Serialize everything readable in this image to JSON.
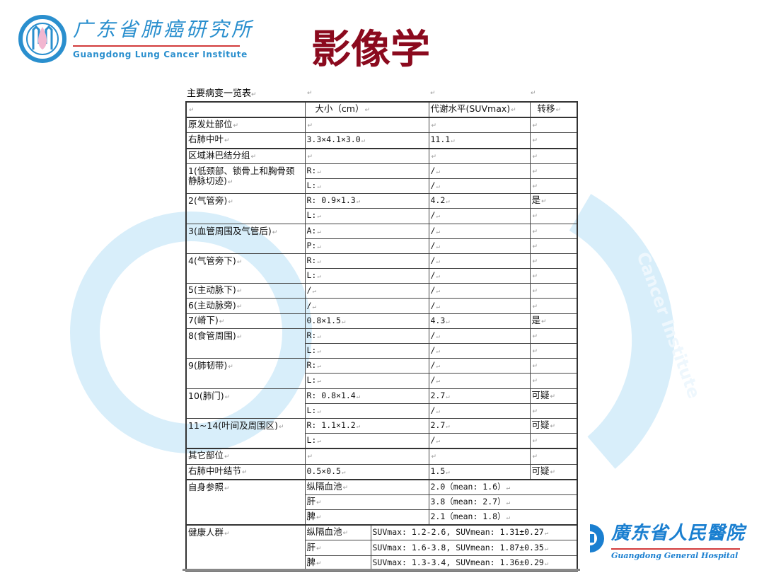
{
  "colors": {
    "title": "#8b0a1e",
    "logo_blue": "#2a8fce",
    "logo_red": "#d23b3b",
    "watermark": "#d8eefa"
  },
  "header": {
    "logo_left": {
      "cn": "广东省肺癌研究所",
      "en": "Guangdong Lung Cancer Institute"
    },
    "title": "影像学"
  },
  "watermark": {
    "text": "Cancer Institute"
  },
  "table": {
    "caption": "主要病变一览表",
    "columns": [
      "",
      "大小（cm）",
      "代谢水平(SUVmax)",
      "转移"
    ],
    "rows": [
      {
        "type": "normal",
        "cells": [
          "原发灶部位",
          "",
          "",
          ""
        ],
        "thick": true
      },
      {
        "type": "normal",
        "cells": [
          "右肺中叶",
          "3.3×4.1×3.0",
          "11.1",
          ""
        ]
      },
      {
        "type": "normal",
        "cells": [
          "区域淋巴结分组",
          "",
          "",
          ""
        ],
        "thick": true
      },
      {
        "type": "normal",
        "cells": [
          "1(低颈部、锁骨上和胸骨颈静脉切迹)",
          "R:",
          "/",
          ""
        ],
        "span": 2
      },
      {
        "type": "normal",
        "cells": [
          null,
          "L:",
          "/",
          ""
        ]
      },
      {
        "type": "normal",
        "cells": [
          "2(气管旁)",
          "R: 0.9×1.3",
          "4.2",
          "是"
        ],
        "span": 2
      },
      {
        "type": "normal",
        "cells": [
          null,
          "L:",
          "/",
          ""
        ]
      },
      {
        "type": "normal",
        "cells": [
          "3(血管周围及气管后)",
          "A:",
          "/",
          ""
        ],
        "span": 2
      },
      {
        "type": "normal",
        "cells": [
          null,
          "P:",
          "/",
          ""
        ]
      },
      {
        "type": "normal",
        "cells": [
          "4(气管旁下)",
          "R:",
          "/",
          ""
        ],
        "span": 2
      },
      {
        "type": "normal",
        "cells": [
          null,
          "L:",
          "/",
          ""
        ]
      },
      {
        "type": "normal",
        "cells": [
          "5(主动脉下)",
          "/",
          "/",
          ""
        ]
      },
      {
        "type": "normal",
        "cells": [
          "6(主动脉旁)",
          "/",
          "/",
          ""
        ]
      },
      {
        "type": "normal",
        "cells": [
          "7(嵴下)",
          "0.8×1.5",
          "4.3",
          "是"
        ]
      },
      {
        "type": "normal",
        "cells": [
          "8(食管周围)",
          "R:",
          "/",
          ""
        ],
        "span": 2
      },
      {
        "type": "normal",
        "cells": [
          null,
          "L:",
          "/",
          ""
        ]
      },
      {
        "type": "normal",
        "cells": [
          "9(肺韧带)",
          "R:",
          "/",
          ""
        ],
        "span": 2
      },
      {
        "type": "normal",
        "cells": [
          null,
          "L:",
          "/",
          ""
        ]
      },
      {
        "type": "normal",
        "cells": [
          "10(肺门)",
          "R: 0.8×1.4",
          "2.7",
          "可疑"
        ],
        "span": 2
      },
      {
        "type": "normal",
        "cells": [
          null,
          "L:",
          "/",
          ""
        ]
      },
      {
        "type": "normal",
        "cells": [
          "11~14(叶间及周围区)",
          "R: 1.1×1.2",
          "2.7",
          "可疑"
        ],
        "span": 2
      },
      {
        "type": "normal",
        "cells": [
          null,
          "L:",
          "/",
          ""
        ]
      },
      {
        "type": "normal",
        "cells": [
          "其它部位",
          "",
          "",
          ""
        ],
        "thick": true
      },
      {
        "type": "normal",
        "cells": [
          "右肺中叶结节",
          "0.5×0.5",
          "1.5",
          "可疑"
        ]
      },
      {
        "type": "self",
        "cells": [
          "自身参照",
          "纵隔血池",
          "2.0（mean: 1.6）"
        ],
        "span": 3,
        "thick": true
      },
      {
        "type": "self",
        "cells": [
          null,
          "肝",
          "3.8（mean: 2.7）"
        ]
      },
      {
        "type": "self",
        "cells": [
          null,
          "脾",
          "2.1（mean: 1.8）"
        ]
      },
      {
        "type": "health",
        "cells": [
          "健康人群",
          "纵隔血池",
          "SUVmax: 1.2-2.6, SUVmean: 1.31±0.27"
        ],
        "span": 3,
        "thick": true
      },
      {
        "type": "health",
        "cells": [
          null,
          "肝",
          "SUVmax: 1.6-3.8, SUVmean: 1.87±0.35"
        ]
      },
      {
        "type": "health",
        "cells": [
          null,
          "脾",
          "SUVmax: 1.3-3.4, SUVmean: 1.36±0.29"
        ]
      }
    ]
  },
  "footer": {
    "logo_right": {
      "cn": "廣东省人民醫院",
      "en": "Guangdong General Hospital"
    }
  }
}
